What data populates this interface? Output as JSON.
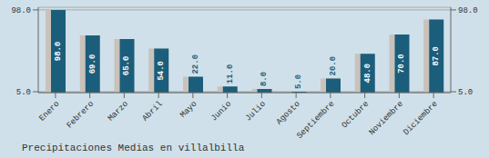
{
  "chart_data": {
    "type": "bar",
    "title": "Precipitaciones Medias en villalbilla",
    "categories": [
      "Enero",
      "Febrero",
      "Marzo",
      "Abril",
      "Mayo",
      "Junio",
      "Julio",
      "Agosto",
      "Septiembre",
      "Octubre",
      "Noviembre",
      "Diciembre"
    ],
    "series": [
      {
        "color": "#c9c2ba",
        "axis": "y2",
        "values": [
          98.0,
          69.0,
          65.0,
          54.0,
          22.0,
          11.0,
          8.0,
          5.0,
          20.0,
          48.0,
          70.0,
          87.0
        ]
      },
      {
        "color": "#1b5e7b",
        "values": [
          98.0,
          69.0,
          65.0,
          54.0,
          22.0,
          11.0,
          8.0,
          5.0,
          20.0,
          48.0,
          70.0,
          87.0
        ],
        "value_labels": [
          "98.0",
          "69.0",
          "65.0",
          "54.0",
          "22.0",
          "11.0",
          "8.0",
          "5.0",
          "20.0",
          "48.0",
          "70.0",
          "87.0"
        ]
      }
    ],
    "ylim": [
      4.0,
      101.0
    ],
    "yticks": [
      {
        "value": 5.0,
        "label": "5.0"
      },
      {
        "value": 98.0,
        "label": "98.0"
      }
    ],
    "y2lim": [
      4.0,
      101.0
    ],
    "y2ticks": [
      {
        "value": 5.0,
        "label": "5.0"
      },
      {
        "value": 98.0,
        "label": "98.0"
      }
    ],
    "grid": true,
    "data_labels": true
  }
}
